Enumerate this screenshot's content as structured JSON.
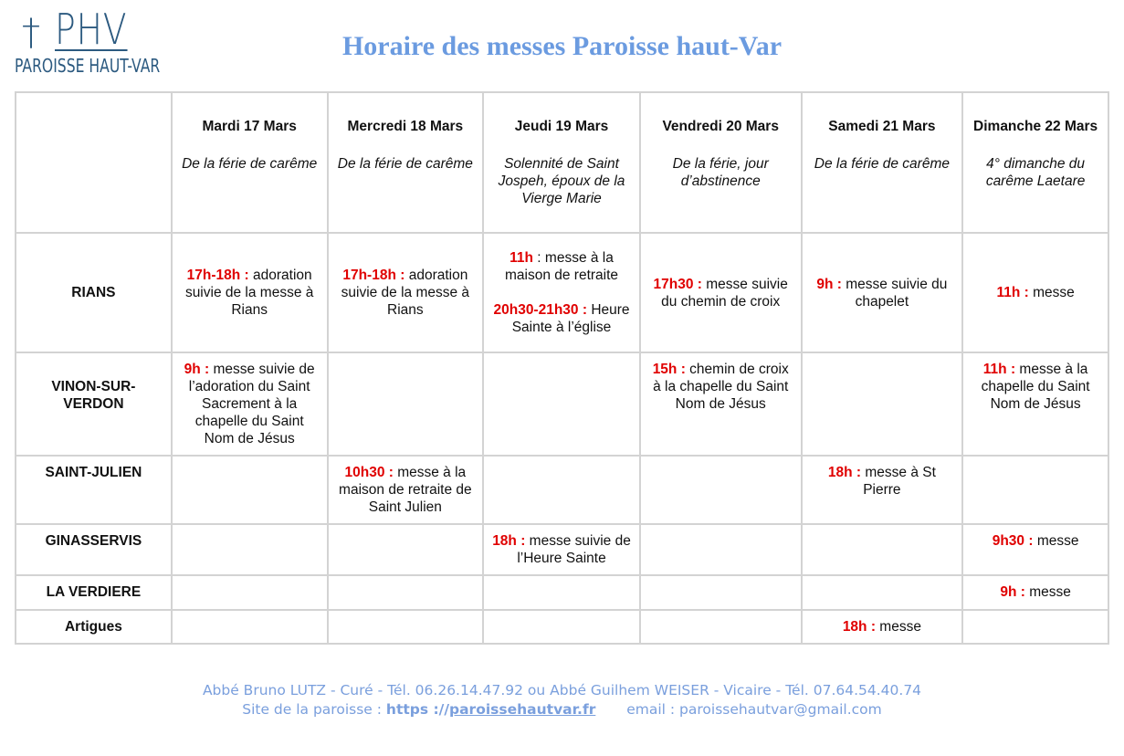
{
  "logo": {
    "cross": "†",
    "abbr": "PHV",
    "name": "PAROISSE HAUT-VAR"
  },
  "title": "Horaire des messes Paroisse haut-Var",
  "days": [
    {
      "day": "Mardi 17 Mars",
      "feast": "De la férie de carême"
    },
    {
      "day": "Mercredi 18 Mars",
      "feast": "De la férie de carême"
    },
    {
      "day": "Jeudi 19 Mars",
      "feast": "Solennité de Saint Jospeh, époux de la Vierge Marie"
    },
    {
      "day": "Vendredi 20 Mars",
      "feast": "De la férie, jour d’abstinence"
    },
    {
      "day": "Samedi 21 Mars",
      "feast": "De la férie de carême"
    },
    {
      "day": "Dimanche 22 Mars",
      "feast": "4° dimanche du carême Laetare"
    }
  ],
  "rows": [
    {
      "place": "RIANS",
      "cells": [
        [
          {
            "time": "17h-18h :",
            "text": " adoration suivie de la messe à Rians"
          }
        ],
        [
          {
            "time": "17h-18h :",
            "text": " adoration suivie de la messe à Rians"
          }
        ],
        [
          {
            "time": "11h",
            "text": " : messe à la maison de retraite"
          },
          {
            "time": "20h30-21h30 :",
            "text": " Heure Sainte à l’église"
          }
        ],
        [
          {
            "time": "17h30 :",
            "text": " messe suivie du chemin de croix"
          }
        ],
        [
          {
            "time": "9h :",
            "text": " messe suivie du chapelet"
          }
        ],
        [
          {
            "time": "11h :",
            "text": " messe"
          }
        ]
      ]
    },
    {
      "place": "VINON-SUR-VERDON",
      "cells": [
        [
          {
            "time": "9h :",
            "text": " messe suivie de l’adoration du Saint Sacrement à la chapelle du Saint Nom de Jésus"
          }
        ],
        [],
        [],
        [
          {
            "time": "15h :",
            "text": " chemin de croix à la chapelle du Saint Nom de Jésus"
          }
        ],
        [],
        [
          {
            "time": "11h :",
            "text": " messe à la chapelle du Saint Nom de Jésus"
          }
        ]
      ]
    },
    {
      "place": "SAINT-JULIEN",
      "cells": [
        [],
        [
          {
            "time": "10h30 :",
            "text": " messe à la maison de retraite de Saint Julien"
          }
        ],
        [],
        [],
        [
          {
            "time": "18h :",
            "text": " messe à St Pierre"
          }
        ],
        []
      ]
    },
    {
      "place": "GINASSERVIS",
      "cells": [
        [],
        [],
        [
          {
            "time": "18h :",
            "text": " messe suivie de l’Heure Sainte"
          }
        ],
        [],
        [],
        [
          {
            "time": "9h30 :",
            "text": " messe"
          }
        ]
      ]
    },
    {
      "place": "LA VERDIERE",
      "cells": [
        [],
        [],
        [],
        [],
        [],
        [
          {
            "time": "9h :",
            "text": " messe"
          }
        ]
      ]
    },
    {
      "place": "Artigues",
      "cells": [
        [],
        [],
        [],
        [],
        [
          {
            "time": "18h :",
            "text": " messe"
          }
        ],
        []
      ]
    }
  ],
  "footer": {
    "line1": "Abbé Bruno LUTZ - Curé - Tél. 06.26.14.47.92 ou Abbé Guilhem WEISER - Vicaire - Tél. 07.64.54.40.74",
    "site_label": "Site de la paroisse : ",
    "site_prefix": "https ://",
    "site_link": "paroissehautvar.fr",
    "email": "email : paroissehautvar@gmail.com"
  },
  "colors": {
    "title": "#6b9be0",
    "time": "#e00000",
    "footer": "#7a9fdd",
    "logo": "#2c5a80"
  }
}
